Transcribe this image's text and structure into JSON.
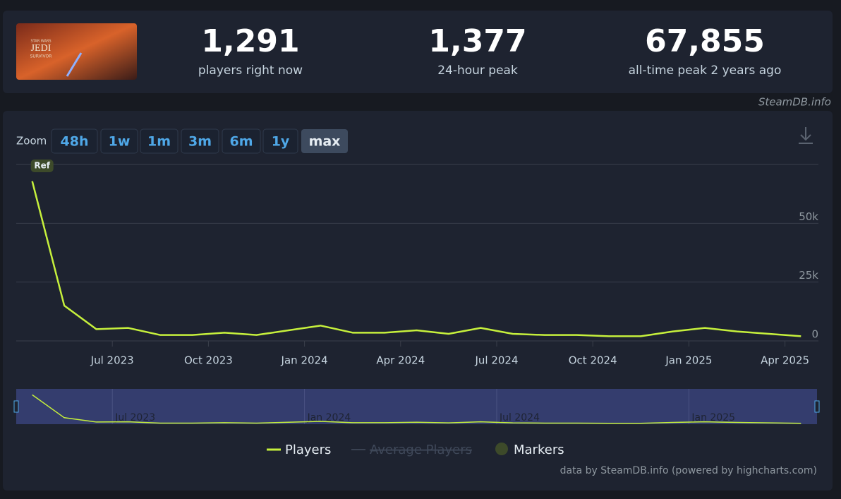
{
  "header": {
    "game_art": {
      "line1": "STAR WARS",
      "line2": "JEDI",
      "line3": "SURVIVOR"
    },
    "stats": [
      {
        "value": "1,291",
        "label": "players right now"
      },
      {
        "value": "1,377",
        "label": "24-hour peak"
      },
      {
        "value": "67,855",
        "label": "all-time peak 2 years ago"
      }
    ],
    "source": "SteamDB.info"
  },
  "zoom": {
    "label": "Zoom",
    "buttons": [
      "48h",
      "1w",
      "1m",
      "3m",
      "6m",
      "1y",
      "max"
    ],
    "active": 6
  },
  "chart_data": {
    "type": "line",
    "x": [
      "2023-04",
      "2023-05",
      "2023-06",
      "2023-07",
      "2023-08",
      "2023-09",
      "2023-10",
      "2023-11",
      "2023-12",
      "2024-01",
      "2024-02",
      "2024-03",
      "2024-04",
      "2024-05",
      "2024-06",
      "2024-07",
      "2024-08",
      "2024-09",
      "2024-10",
      "2024-11",
      "2024-12",
      "2025-01",
      "2025-02",
      "2025-03",
      "2025-04"
    ],
    "series": [
      {
        "name": "Players",
        "color": "#c6f03c",
        "values": [
          67855,
          15000,
          5000,
          5500,
          2500,
          2500,
          3500,
          2500,
          4500,
          6500,
          3500,
          3500,
          4500,
          3000,
          5500,
          3000,
          2500,
          2500,
          2000,
          2000,
          4000,
          5500,
          4000,
          3000,
          2000
        ]
      }
    ],
    "legend_items": [
      {
        "name": "Average Players",
        "hidden": true
      },
      {
        "name": "Markers",
        "color": "#3d4a2a"
      }
    ],
    "marker_flag": "Ref",
    "xlim": [
      "2023-04",
      "2025-05"
    ],
    "xticks": [
      {
        "value": "2023-07",
        "label": "Jul 2023"
      },
      {
        "value": "2023-10",
        "label": "Oct 2023"
      },
      {
        "value": "2024-01",
        "label": "Jan 2024"
      },
      {
        "value": "2024-04",
        "label": "Apr 2024"
      },
      {
        "value": "2024-07",
        "label": "Jul 2024"
      },
      {
        "value": "2024-10",
        "label": "Oct 2024"
      },
      {
        "value": "2025-01",
        "label": "Jan 2025"
      },
      {
        "value": "2025-04",
        "label": "Apr 2025"
      }
    ],
    "ylim": [
      0,
      75000
    ],
    "yticks": [
      0,
      {
        "value": 25000,
        "label": "25k"
      },
      {
        "value": 50000,
        "label": "50k"
      }
    ],
    "grid": true,
    "credit": "data by SteamDB.info (powered by highcharts.com)"
  }
}
